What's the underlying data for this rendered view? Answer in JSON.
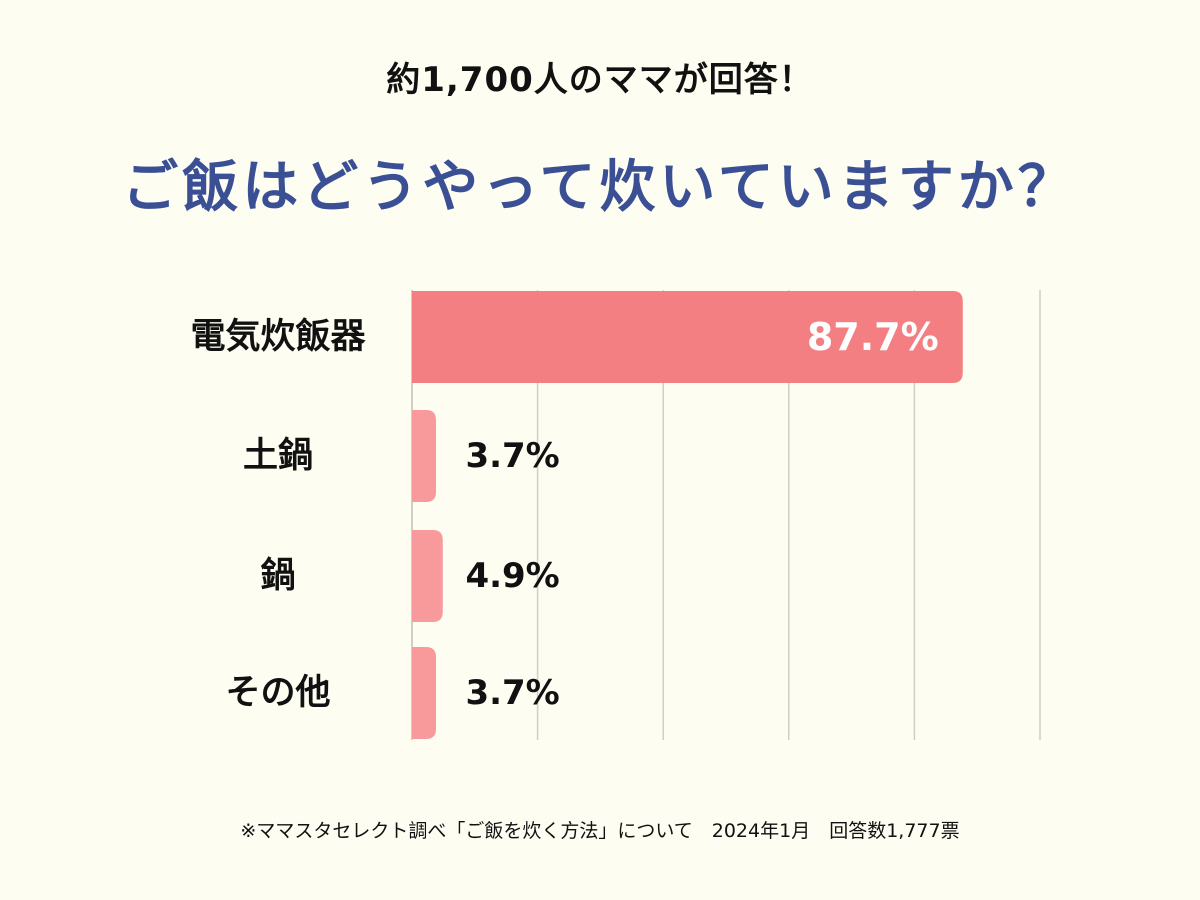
{
  "header": {
    "subtitle": "約1,700人のママが回答！",
    "title": "ご飯はどうやって炊いていますか？"
  },
  "footnote": "※ママスタセレクト調べ「ご飯を炊く方法」について　2024年1月　回答数1,777票",
  "colors": {
    "background": "#fdfdf2",
    "title": "#3b4f94",
    "bar_primary": "#f37f82",
    "bar_secondary": "#f89a9c",
    "gridline": "#cfcfc6",
    "label_inside": "#ffffff",
    "label_outside": "#111111"
  },
  "chart_data": {
    "type": "bar",
    "orientation": "horizontal",
    "categories": [
      "電気炊飯器",
      "土鍋",
      "鍋",
      "その他"
    ],
    "values": [
      87.7,
      3.7,
      4.9,
      3.7
    ],
    "value_labels": [
      "87.7%",
      "3.7%",
      "4.9%",
      "3.7%"
    ],
    "xlim": [
      0,
      100
    ],
    "grid": true,
    "legend": "none"
  }
}
